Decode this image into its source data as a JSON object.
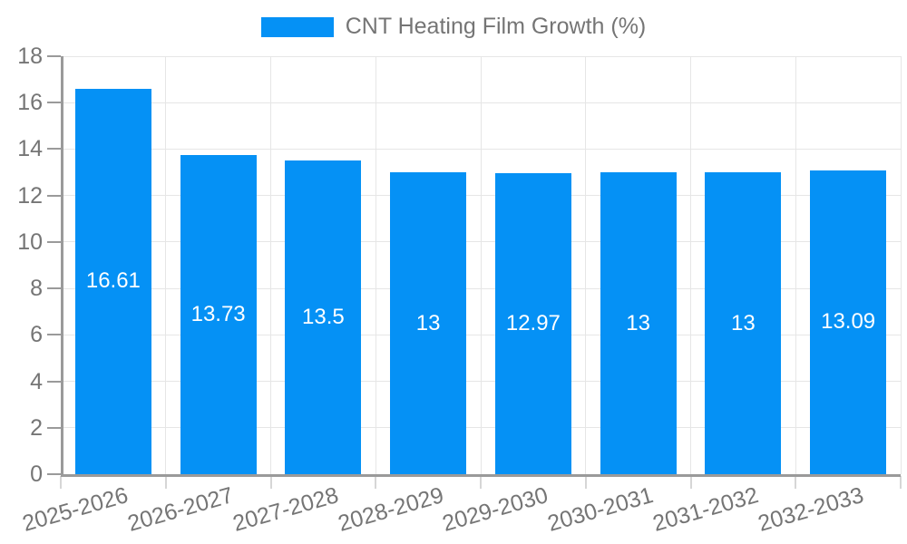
{
  "chart_data": {
    "type": "bar",
    "title": "CNT Heating Film Growth (%)",
    "legend": {
      "label": "CNT Heating Film Growth (%)",
      "position": "top"
    },
    "categories": [
      "2025-2026",
      "2026-2027",
      "2027-2028",
      "2028-2029",
      "2029-2030",
      "2030-2031",
      "2031-2032",
      "2032-2033"
    ],
    "series": [
      {
        "name": "CNT Heating Film Growth (%)",
        "values": [
          16.61,
          13.73,
          13.5,
          13,
          12.97,
          13,
          13,
          13.09
        ],
        "labels": [
          "16.61",
          "13.73",
          "13.5",
          "13",
          "12.97",
          "13",
          "13",
          "13.09"
        ]
      }
    ],
    "xlabel": "",
    "ylabel": "",
    "ylim": [
      0,
      18
    ],
    "yticks": [
      "0",
      "2",
      "4",
      "6",
      "8",
      "10",
      "12",
      "14",
      "16",
      "18"
    ],
    "grid": true,
    "x_label_rotation_deg": -16,
    "colors": {
      "bar": "#0591F5",
      "axis_line": "#9A9A9A",
      "grid_line": "#E6E6E6",
      "x_tick": "#D6D6D6",
      "y_tick": "#9A9A9A",
      "tick_label": "#757575",
      "legend_text": "#757575",
      "bar_label": "#FFFFFF",
      "background": "#FFFFFF"
    }
  }
}
